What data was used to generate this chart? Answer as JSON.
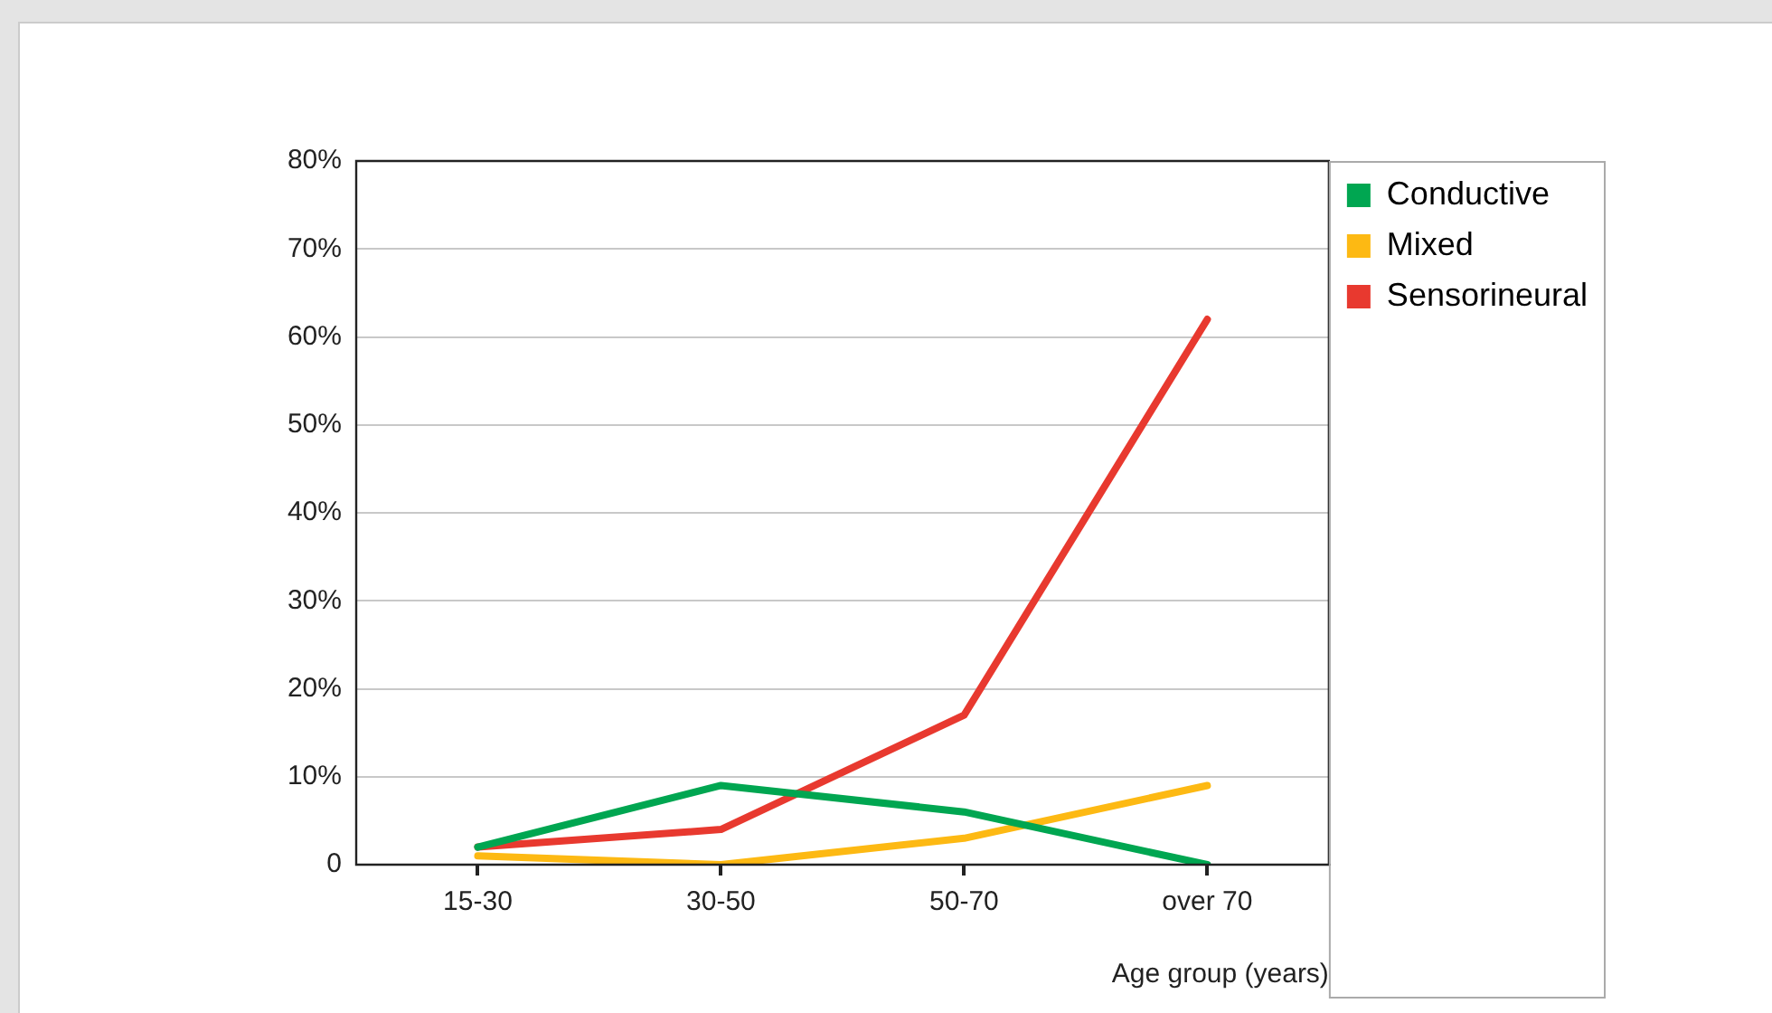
{
  "chart_data": {
    "type": "line",
    "xlabel": "Age group (years)",
    "categories": [
      "15-30",
      "30-50",
      "50-70",
      "over 70"
    ],
    "series": [
      {
        "name": "Conductive",
        "color": "#00a651",
        "values": [
          2,
          9,
          6,
          0
        ]
      },
      {
        "name": "Mixed",
        "color": "#fdb913",
        "values": [
          1,
          0,
          3,
          9
        ]
      },
      {
        "name": "Sensorineural",
        "color": "#e8392f",
        "values": [
          2,
          4,
          17,
          62
        ]
      }
    ],
    "ylim": [
      0,
      80
    ],
    "yticks": [
      0,
      {
        "value": 10,
        "label": "10%"
      },
      {
        "value": 20,
        "label": "20%"
      },
      {
        "value": 30,
        "label": "30%"
      },
      {
        "value": 40,
        "label": "40%"
      },
      {
        "value": 50,
        "label": "50%"
      },
      {
        "value": 60,
        "label": "60%"
      },
      {
        "value": 70,
        "label": "70%"
      },
      {
        "value": 80,
        "label": "80%"
      }
    ],
    "grid": "y",
    "legend": "top right",
    "marker": "none",
    "line_style": "solid"
  }
}
